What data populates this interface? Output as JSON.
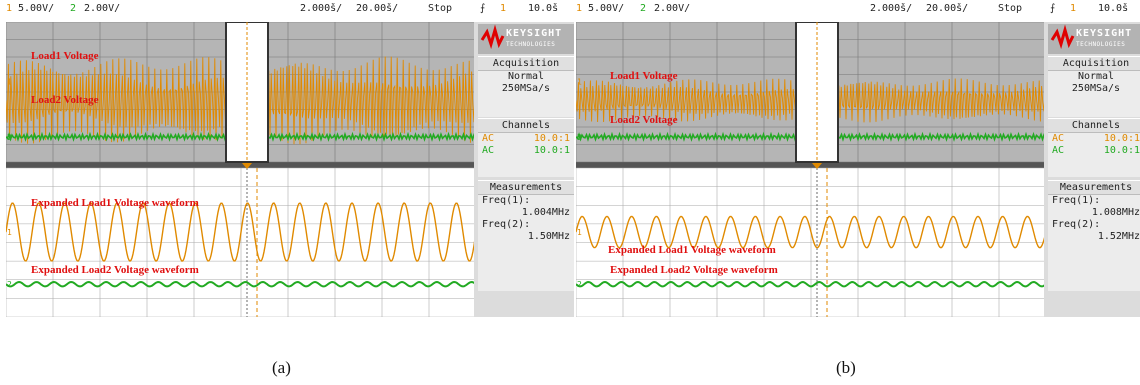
{
  "panels": [
    {
      "caption": "(a)",
      "header": {
        "ch1_num": "1",
        "ch1_scale": "5.00V/",
        "ch2_num": "2",
        "ch2_scale": "2.00V/",
        "time_scale": "2.000š/",
        "delay": "20.00š/",
        "run_state": "Stop",
        "trig_num": "1",
        "trig_level": "10.0š"
      },
      "labels": {
        "load1": "Load1 Voltage",
        "load2": "Load2 Voltage",
        "exp1": "Expanded Load1 Voltage waveform",
        "exp2": "Expanded Load2 Voltage waveform"
      },
      "sidebar": {
        "brand": "KEYSIGHT",
        "brand_sub": "TECHNOLOGIES",
        "acq_title": "Acquisition",
        "acq_mode": "Normal",
        "acq_rate": "250MSa/s",
        "ch_title": "Channels",
        "ch1_coupling": "AC",
        "ch1_probe": "10.0:1",
        "ch2_coupling": "AC",
        "ch2_probe": "10.0:1",
        "meas_title": "Measurements",
        "freq1_label": "Freq(1):",
        "freq1_value": "1.004MHz",
        "freq2_label": "Freq(2):",
        "freq2_value": "1.50MHz"
      },
      "wave": {
        "expanded_cycles": 18,
        "expanded_amp": 0.78,
        "envelope_height": 0.9
      }
    },
    {
      "caption": "(b)",
      "header": {
        "ch1_num": "1",
        "ch1_scale": "5.00V/",
        "ch2_num": "2",
        "ch2_scale": "2.00V/",
        "time_scale": "2.000š/",
        "delay": "20.00š/",
        "run_state": "Stop",
        "trig_num": "1",
        "trig_level": "10.0š"
      },
      "labels": {
        "load1": "Load1 Voltage",
        "load2": "Load2 Voltage",
        "exp1": "Expanded Load1 Voltage waveform",
        "exp2": "Expanded Load2 Voltage waveform"
      },
      "sidebar": {
        "brand": "KEYSIGHT",
        "brand_sub": "TECHNOLOGIES",
        "acq_title": "Acquisition",
        "acq_mode": "Normal",
        "acq_rate": "250MSa/s",
        "ch_title": "Channels",
        "ch1_coupling": "AC",
        "ch1_probe": "10.0:1",
        "ch2_coupling": "AC",
        "ch2_probe": "10.0:1",
        "meas_title": "Measurements",
        "freq1_label": "Freq(1):",
        "freq1_value": "1.008MHz",
        "freq2_label": "Freq(2):",
        "freq2_value": "1.52MHz"
      },
      "wave": {
        "expanded_cycles": 19,
        "expanded_amp": 0.42,
        "envelope_height": 0.45
      }
    }
  ],
  "colors": {
    "ch1": "#e08a00",
    "ch2": "#22aa22",
    "label": "#e01010",
    "grid": "#777777",
    "screen_top": "#b5b5b5"
  }
}
